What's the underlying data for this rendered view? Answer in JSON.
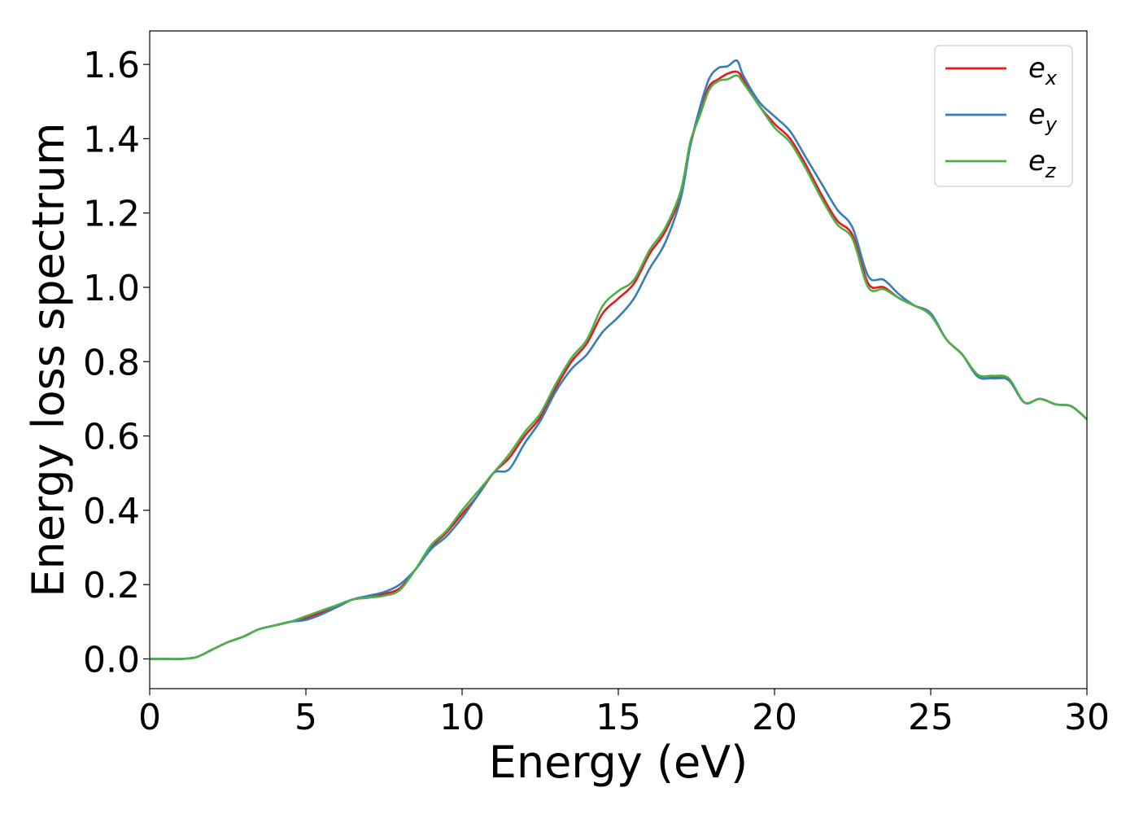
{
  "chart_data": {
    "type": "line",
    "title": "",
    "xlabel": "Energy (eV)",
    "ylabel": "Energy loss spectrum",
    "xlim": [
      0,
      30
    ],
    "ylim": [
      -0.08,
      1.69
    ],
    "xticks": [
      0,
      5,
      10,
      15,
      20,
      25,
      30
    ],
    "xtick_labels": [
      "0",
      "5",
      "10",
      "15",
      "20",
      "25",
      "30"
    ],
    "yticks": [
      0.0,
      0.2,
      0.4,
      0.6,
      0.8,
      1.0,
      1.2,
      1.4,
      1.6
    ],
    "ytick_labels": [
      "0.0",
      "0.2",
      "0.4",
      "0.6",
      "0.8",
      "1.0",
      "1.2",
      "1.4",
      "1.6"
    ],
    "grid": false,
    "legend_position": "top-right",
    "x": [
      0,
      0.5,
      1.0,
      1.5,
      2.0,
      2.5,
      3.0,
      3.5,
      4.0,
      4.5,
      5.0,
      5.5,
      6.0,
      6.5,
      7.0,
      7.5,
      8.0,
      8.5,
      9.0,
      9.5,
      10.0,
      10.5,
      11.0,
      11.5,
      12.0,
      12.5,
      13.0,
      13.5,
      14.0,
      14.5,
      15.0,
      15.5,
      16.0,
      16.5,
      17.0,
      17.3,
      17.6,
      17.9,
      18.2,
      18.5,
      18.8,
      19.0,
      19.5,
      20.0,
      20.5,
      21.0,
      21.5,
      22.0,
      22.5,
      23.0,
      23.5,
      24.0,
      24.5,
      25.0,
      25.5,
      26.0,
      26.5,
      27.0,
      27.5,
      28.0,
      28.5,
      29.0,
      29.5,
      30.0
    ],
    "series": [
      {
        "name": "e_x",
        "label_base": "e",
        "label_sub": "x",
        "color": "#e41a1c",
        "values": [
          0.0,
          0.0,
          0.0,
          0.005,
          0.025,
          0.045,
          0.06,
          0.08,
          0.09,
          0.1,
          0.11,
          0.125,
          0.14,
          0.16,
          0.165,
          0.175,
          0.19,
          0.24,
          0.3,
          0.34,
          0.39,
          0.44,
          0.5,
          0.54,
          0.6,
          0.65,
          0.73,
          0.8,
          0.85,
          0.93,
          0.97,
          1.01,
          1.09,
          1.15,
          1.25,
          1.38,
          1.47,
          1.54,
          1.56,
          1.575,
          1.58,
          1.56,
          1.49,
          1.44,
          1.4,
          1.33,
          1.25,
          1.18,
          1.14,
          1.01,
          1.0,
          0.97,
          0.95,
          0.93,
          0.86,
          0.82,
          0.765,
          0.76,
          0.75,
          0.69,
          0.7,
          0.685,
          0.68,
          0.645
        ]
      },
      {
        "name": "e_y",
        "label_base": "e",
        "label_sub": "y",
        "color": "#377eb8",
        "values": [
          0.0,
          0.0,
          0.0,
          0.005,
          0.025,
          0.045,
          0.06,
          0.08,
          0.09,
          0.1,
          0.105,
          0.12,
          0.14,
          0.16,
          0.17,
          0.18,
          0.2,
          0.24,
          0.295,
          0.33,
          0.38,
          0.44,
          0.5,
          0.51,
          0.58,
          0.64,
          0.72,
          0.78,
          0.82,
          0.88,
          0.92,
          0.97,
          1.05,
          1.12,
          1.24,
          1.38,
          1.48,
          1.56,
          1.59,
          1.595,
          1.61,
          1.57,
          1.5,
          1.46,
          1.42,
          1.35,
          1.28,
          1.21,
          1.16,
          1.03,
          1.02,
          0.98,
          0.95,
          0.93,
          0.86,
          0.82,
          0.76,
          0.755,
          0.75,
          0.69,
          0.7,
          0.685,
          0.68,
          0.645
        ]
      },
      {
        "name": "e_z",
        "label_base": "e",
        "label_sub": "z",
        "color": "#4daf4a",
        "values": [
          0.0,
          0.0,
          0.0,
          0.005,
          0.025,
          0.045,
          0.06,
          0.08,
          0.09,
          0.1,
          0.115,
          0.13,
          0.145,
          0.16,
          0.165,
          0.17,
          0.185,
          0.24,
          0.305,
          0.345,
          0.4,
          0.45,
          0.5,
          0.55,
          0.61,
          0.66,
          0.74,
          0.81,
          0.86,
          0.95,
          0.99,
          1.02,
          1.1,
          1.16,
          1.26,
          1.39,
          1.46,
          1.53,
          1.555,
          1.56,
          1.57,
          1.55,
          1.49,
          1.43,
          1.39,
          1.32,
          1.24,
          1.17,
          1.13,
          1.0,
          0.995,
          0.97,
          0.95,
          0.925,
          0.86,
          0.82,
          0.765,
          0.762,
          0.755,
          0.69,
          0.7,
          0.685,
          0.68,
          0.645
        ]
      }
    ]
  }
}
